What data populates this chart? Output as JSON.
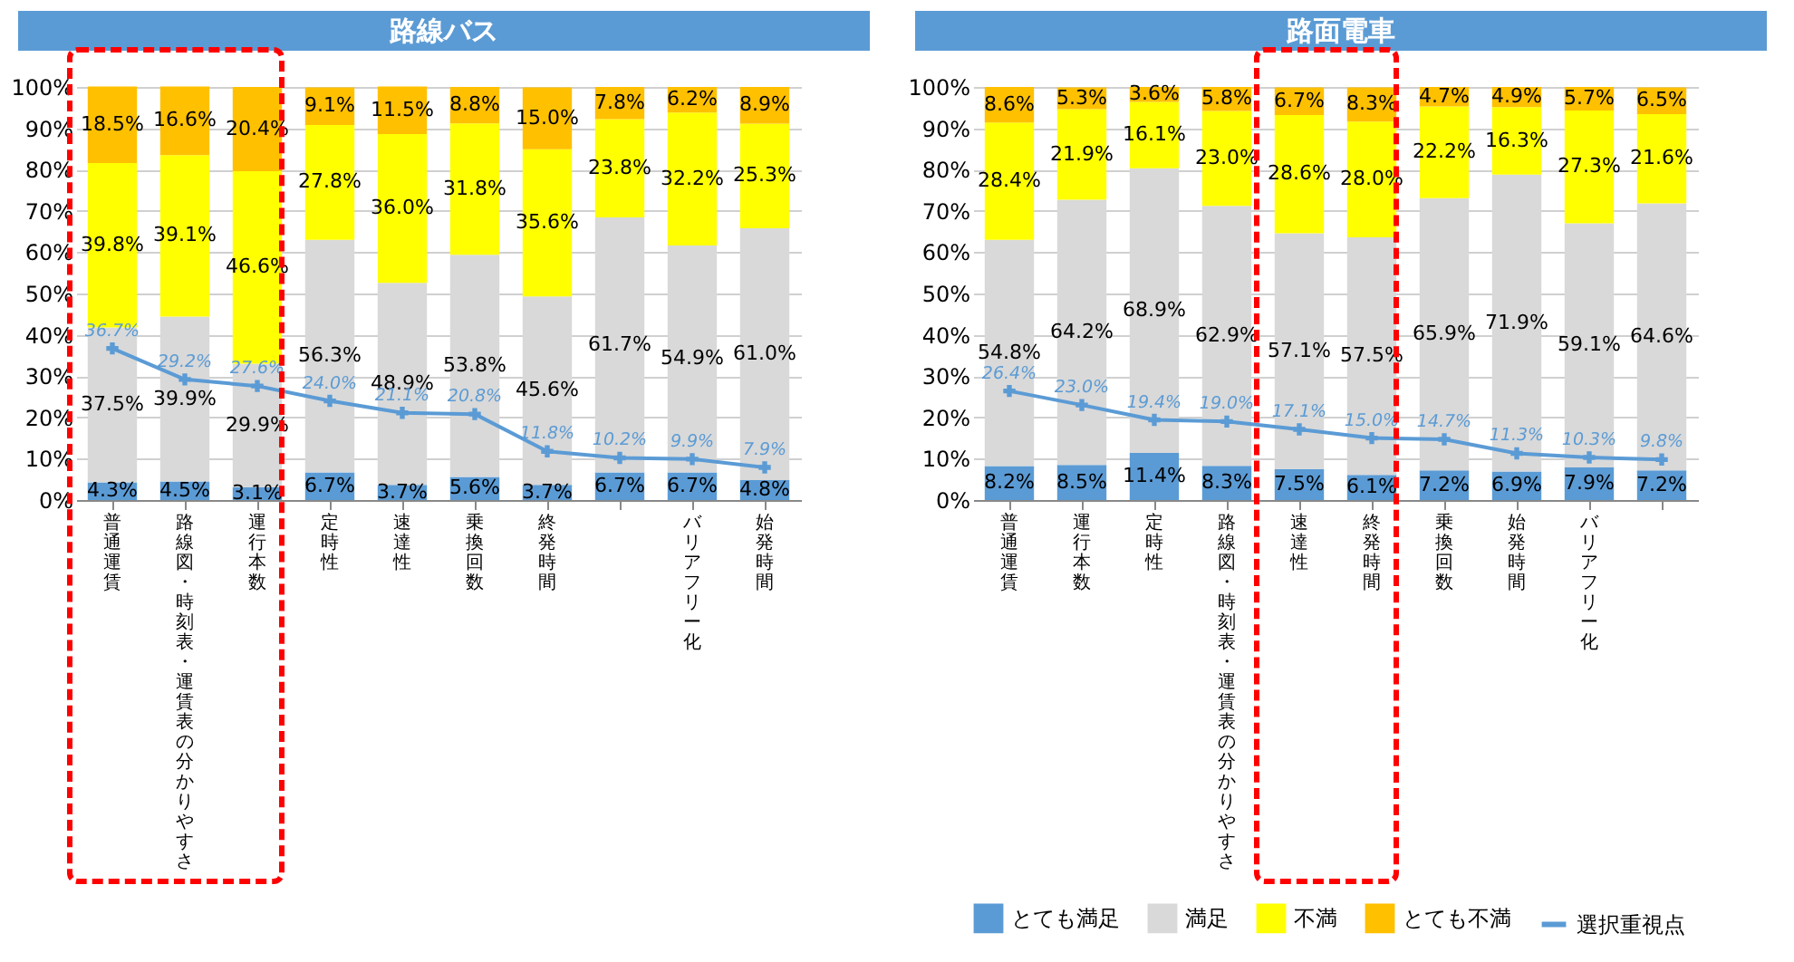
{
  "chart_data": [
    {
      "type": "bar",
      "title": "路線バス",
      "stacked": true,
      "ylim": [
        0,
        100
      ],
      "grid": "y",
      "marker": "cross",
      "yticks": [
        {
          "value": 0,
          "label": "0%"
        },
        {
          "value": 10,
          "label": "10%"
        },
        {
          "value": 20,
          "label": "20%"
        },
        {
          "value": 30,
          "label": "30%"
        },
        {
          "value": 40,
          "label": "40%"
        },
        {
          "value": 50,
          "label": "50%"
        },
        {
          "value": 60,
          "label": "60%"
        },
        {
          "value": 70,
          "label": "70%"
        },
        {
          "value": 80,
          "label": "80%"
        },
        {
          "value": 90,
          "label": "90%"
        },
        {
          "value": 100,
          "label": "100%"
        }
      ],
      "categories": [
        "普通運賃",
        "路線図・時刻表・運賃表の分かりやすさ",
        "運行本数",
        "定時性",
        "速達性",
        "乗換回数",
        "終発時間",
        null,
        "バリアフリー化",
        "始発時間"
      ],
      "series": [
        {
          "color": "#5b9bd5",
          "values": [
            4.3,
            4.5,
            3.1,
            6.7,
            3.7,
            5.6,
            3.7,
            6.7,
            6.7,
            4.8
          ],
          "value_labels": [
            "4.3%",
            "4.5%",
            "3.1%",
            "6.7%",
            "3.7%",
            "5.6%",
            "3.7%",
            "6.7%",
            "6.7%",
            "4.8%"
          ]
        },
        {
          "color": "#d9d9d9",
          "values": [
            37.5,
            39.9,
            29.9,
            56.3,
            48.9,
            53.8,
            45.6,
            61.7,
            54.9,
            61.0
          ],
          "value_labels": [
            "37.5%",
            "39.9%",
            "29.9%",
            "56.3%",
            "48.9%",
            "53.8%",
            "45.6%",
            "61.7%",
            "54.9%",
            "61.0%"
          ]
        },
        {
          "color": "#ffff00",
          "values": [
            39.8,
            39.1,
            46.6,
            27.8,
            36.0,
            31.8,
            35.6,
            23.8,
            32.2,
            25.3
          ],
          "value_labels": [
            "39.8%",
            "39.1%",
            "46.6%",
            "27.8%",
            "36.0%",
            "31.8%",
            "35.6%",
            "23.8%",
            "32.2%",
            "25.3%"
          ]
        },
        {
          "color": "#ffc000",
          "values": [
            18.5,
            16.6,
            20.4,
            9.1,
            11.5,
            8.8,
            15.0,
            7.8,
            6.2,
            8.9
          ],
          "value_labels": [
            "18.5%",
            "16.6%",
            "20.4%",
            "9.1%",
            "11.5%",
            "8.8%",
            "15.0%",
            "7.8%",
            "6.2%",
            "8.9%"
          ]
        },
        {
          "type": "line",
          "color": "#5b9bd5",
          "values": [
            36.7,
            29.2,
            27.6,
            24.0,
            21.1,
            20.8,
            11.8,
            10.2,
            9.9,
            7.9
          ],
          "value_labels": [
            "36.7%",
            "29.2%",
            "27.6%",
            "24.0%",
            "21.1%",
            "20.8%",
            "11.8%",
            "10.2%",
            "9.9%",
            "7.9%"
          ]
        }
      ]
    },
    {
      "type": "bar",
      "title": "路面電車",
      "stacked": true,
      "ylim": [
        0,
        100
      ],
      "grid": "y",
      "marker": "cross",
      "legend": "bottom",
      "yticks": [
        {
          "value": 0,
          "label": "0%"
        },
        {
          "value": 10,
          "label": "10%"
        },
        {
          "value": 20,
          "label": "20%"
        },
        {
          "value": 30,
          "label": "30%"
        },
        {
          "value": 40,
          "label": "40%"
        },
        {
          "value": 50,
          "label": "50%"
        },
        {
          "value": 60,
          "label": "60%"
        },
        {
          "value": 70,
          "label": "70%"
        },
        {
          "value": 80,
          "label": "80%"
        },
        {
          "value": 90,
          "label": "90%"
        },
        {
          "value": 100,
          "label": "100%"
        }
      ],
      "categories": [
        "普通運賃",
        "運行本数",
        "定時性",
        "路線図・時刻表・運賃表の分かりやすさ",
        "速達性",
        "終発時間",
        "乗換回数",
        "始発時間",
        "バリアフリー化",
        null
      ],
      "series": [
        {
          "name": "とても満足",
          "color": "#5b9bd5",
          "values": [
            8.2,
            8.5,
            11.4,
            8.3,
            7.5,
            6.1,
            7.2,
            6.9,
            7.9,
            7.2
          ],
          "value_labels": [
            "8.2%",
            "8.5%",
            "11.4%",
            "8.3%",
            "7.5%",
            "6.1%",
            "7.2%",
            "6.9%",
            "7.9%",
            "7.2%"
          ]
        },
        {
          "name": "満足",
          "color": "#d9d9d9",
          "values": [
            54.8,
            64.2,
            68.9,
            62.9,
            57.1,
            57.5,
            65.9,
            71.9,
            59.1,
            64.6
          ],
          "value_labels": [
            "54.8%",
            "64.2%",
            "68.9%",
            "62.9%",
            "57.1%",
            "57.5%",
            "65.9%",
            "71.9%",
            "59.1%",
            "64.6%"
          ]
        },
        {
          "name": "不満",
          "color": "#ffff00",
          "values": [
            28.4,
            21.9,
            16.1,
            23.0,
            28.6,
            28.0,
            22.2,
            16.3,
            27.3,
            21.6
          ],
          "value_labels": [
            "28.4%",
            "21.9%",
            "16.1%",
            "23.0%",
            "28.6%",
            "28.0%",
            "22.2%",
            "16.3%",
            "27.3%",
            "21.6%"
          ]
        },
        {
          "name": "とても不満",
          "color": "#ffc000",
          "values": [
            8.6,
            5.3,
            3.6,
            5.8,
            6.7,
            8.3,
            4.7,
            4.9,
            5.7,
            6.5
          ],
          "value_labels": [
            "8.6%",
            "5.3%",
            "3.6%",
            "5.8%",
            "6.7%",
            "8.3%",
            "4.7%",
            "4.9%",
            "5.7%",
            "6.5%"
          ]
        },
        {
          "name": "選択重視点",
          "type": "line",
          "color": "#5b9bd5",
          "values": [
            26.4,
            23.0,
            19.4,
            19.0,
            17.1,
            15.0,
            14.7,
            11.3,
            10.3,
            9.8
          ],
          "value_labels": [
            "26.4%",
            "23.0%",
            "19.4%",
            "19.0%",
            "17.1%",
            "15.0%",
            "14.7%",
            "11.3%",
            "10.3%",
            "9.8%"
          ]
        }
      ]
    }
  ]
}
